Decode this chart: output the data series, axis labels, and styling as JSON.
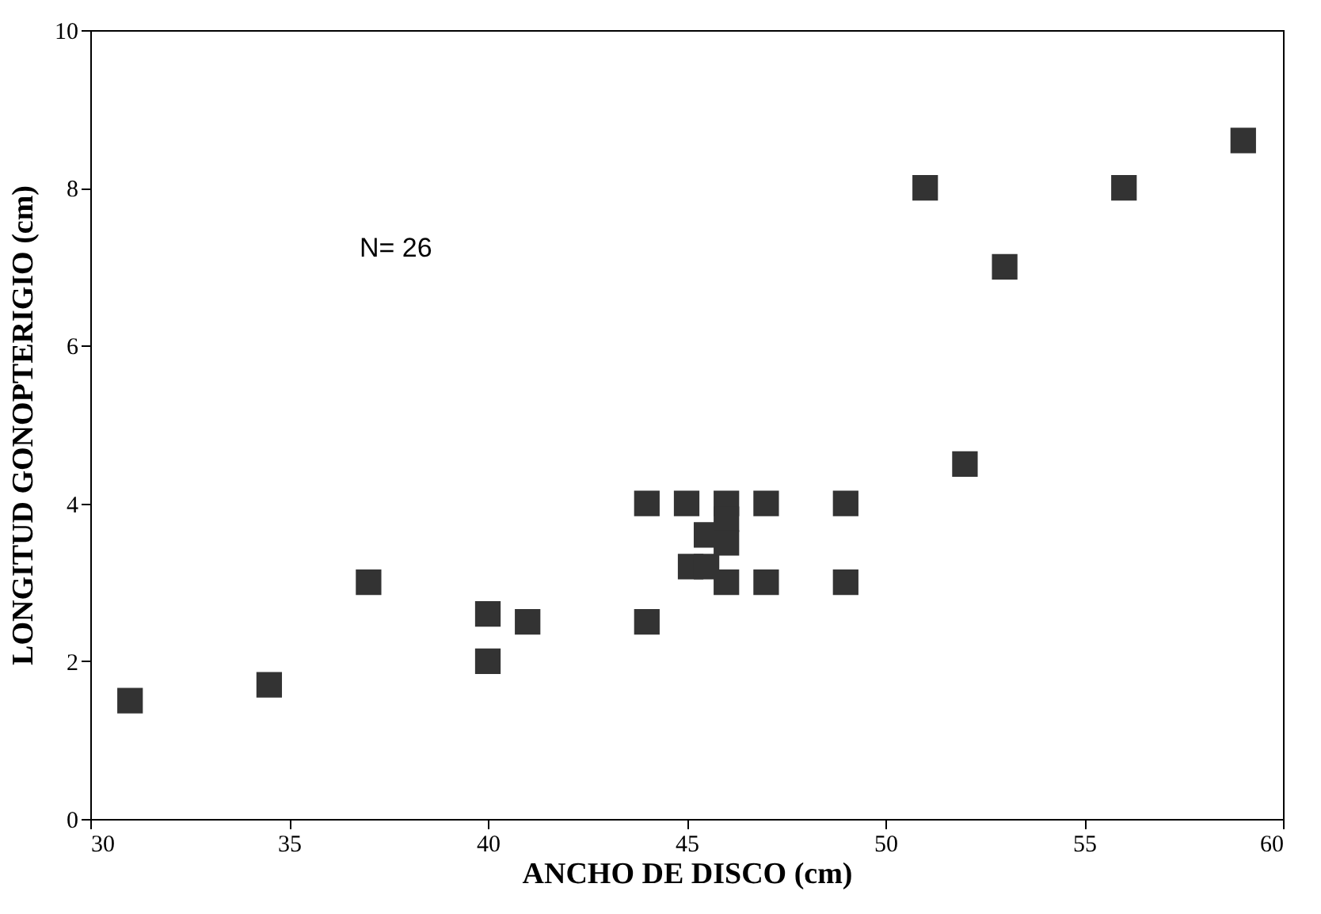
{
  "chart_data": {
    "type": "scatter",
    "xlabel": "ANCHO DE DISCO (cm)",
    "ylabel": "LONGITUD GONOPTERIGIO (cm)",
    "annotations": [
      "N= 26"
    ],
    "x": [
      31,
      34.5,
      37,
      40,
      40,
      41,
      44,
      44,
      45,
      45.1,
      45.5,
      45.5,
      46,
      46,
      46,
      46,
      47,
      47,
      49,
      49,
      51,
      52,
      53,
      56,
      59
    ],
    "values": [
      1.5,
      1.7,
      3,
      2.6,
      2,
      2.5,
      4,
      2.5,
      4,
      3.2,
      3.2,
      3.6,
      4,
      3.8,
      3.5,
      3,
      4,
      3,
      4,
      3,
      8,
      4.5,
      7,
      8,
      8.6
    ],
    "color": "#333333",
    "marker": "square",
    "grid": false,
    "xlim": [
      30,
      60
    ],
    "xticks": [
      30,
      35,
      40,
      45,
      50,
      55,
      60
    ],
    "ylim": [
      0,
      10
    ],
    "yticks": [
      0,
      2,
      4,
      6,
      8,
      10
    ]
  }
}
